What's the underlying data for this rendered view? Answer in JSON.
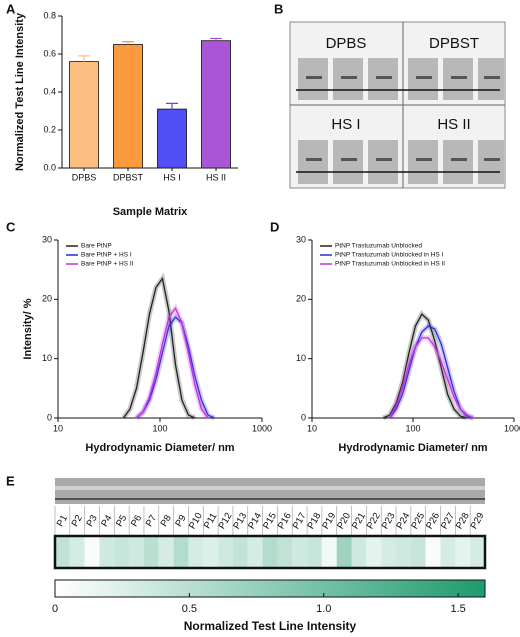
{
  "panels": [
    "A",
    "B",
    "C",
    "D",
    "E"
  ],
  "image_panel": {
    "labels": [
      "DPBS",
      "DPBST",
      "HS I",
      "HS II"
    ]
  },
  "chart_data": [
    {
      "type": "bar",
      "categories": [
        "DPBS",
        "DPBST",
        "HS I",
        "HS II"
      ],
      "values": [
        0.56,
        0.65,
        0.31,
        0.67
      ],
      "errors": [
        0.03,
        0.015,
        0.03,
        0.012
      ],
      "colors": [
        "#fdbf80",
        "#fb9a3c",
        "#5050f5",
        "#a855d6"
      ],
      "ylim": [
        0,
        0.8
      ],
      "yticks": [
        {
          "value": 0,
          "label": "0.0"
        },
        0.2,
        0.4,
        0.6,
        0.8
      ],
      "ylabel": "Normalized Test Line Intensity",
      "xlabel": "Sample Matrix"
    },
    {
      "type": "line",
      "xlog": true,
      "x": [
        43.8,
        50.7,
        58.8,
        68.1,
        78.8,
        91.3,
        105.7,
        122.4,
        141.8,
        164.2,
        190.1,
        220.2,
        255,
        295.3,
        342
      ],
      "series": [
        {
          "name": "Bare PtNP",
          "color": "#222222",
          "values": [
            0,
            1.5,
            5,
            11,
            17.5,
            22,
            23.5,
            18,
            9,
            3,
            0.5,
            0,
            null,
            null,
            null
          ]
        },
        {
          "name": "Bare PtNP + HS I",
          "color": "#2a2ae0",
          "values": [
            null,
            null,
            0,
            1,
            3,
            6.5,
            11,
            15.5,
            17,
            16,
            12,
            7,
            3,
            0.5,
            0
          ]
        },
        {
          "name": "Bare PtNP + HS II",
          "color": "#c030e0",
          "values": [
            null,
            null,
            0,
            1,
            3.5,
            7.5,
            12.5,
            17,
            18.5,
            16,
            11,
            5.5,
            1.5,
            0,
            null
          ]
        }
      ],
      "xlim": [
        10,
        1000
      ],
      "xticks": [
        10,
        100,
        1000
      ],
      "ylim": [
        0,
        30
      ],
      "yticks": [
        0,
        10,
        20,
        30
      ],
      "ylabel": "Intensity/ %",
      "xlabel": "Hydrodynamic Diameter/ nm",
      "legend": "upper left"
    },
    {
      "type": "line",
      "xlog": true,
      "x": [
        50.7,
        58.8,
        68.1,
        78.8,
        91.3,
        105.7,
        122.4,
        141.8,
        164.2,
        190.1,
        220.2,
        255,
        295.3,
        342,
        396
      ],
      "series": [
        {
          "name": "PtNP Trastuzumab Unblocked",
          "color": "#222222",
          "values": [
            0,
            0.5,
            2.5,
            6,
            11,
            15.5,
            17.5,
            16.5,
            13,
            8.5,
            4,
            1.5,
            0.3,
            0,
            null
          ]
        },
        {
          "name": "PtNP Trastuzumab Unblocked in HS I",
          "color": "#2a2ae0",
          "values": [
            null,
            0,
            1.5,
            4,
            8,
            12,
            14.5,
            15.5,
            15,
            12.5,
            8.5,
            4.5,
            1.5,
            0.3,
            0
          ]
        },
        {
          "name": "PtNP Trastuzumab Unblocked in HS II",
          "color": "#c030e0",
          "values": [
            null,
            0,
            2,
            5,
            9,
            12,
            13.5,
            13.5,
            12,
            9.5,
            6.5,
            3.5,
            1.5,
            0.5,
            0
          ]
        }
      ],
      "xlim": [
        10,
        1000
      ],
      "xticks": [
        10,
        100,
        1000
      ],
      "ylim": [
        0,
        30
      ],
      "yticks": [
        0,
        10,
        20,
        30
      ],
      "xlabel": "Hydrodynamic Diameter/ nm",
      "legend": "upper left"
    },
    {
      "type": "heatmap",
      "categories": [
        "P1",
        "P2",
        "P3",
        "P4",
        "P5",
        "P6",
        "P7",
        "P8",
        "P9",
        "P10",
        "P11",
        "P12",
        "P13",
        "P14",
        "P15",
        "P16",
        "P17",
        "P18",
        "P19",
        "P20",
        "P21",
        "P22",
        "P23",
        "P24",
        "P25",
        "P26",
        "P27",
        "P28",
        "P29"
      ],
      "values": [
        0.45,
        0.3,
        0.05,
        0.35,
        0.4,
        0.35,
        0.5,
        0.3,
        0.55,
        0.3,
        0.25,
        0.35,
        0.45,
        0.3,
        0.55,
        0.45,
        0.35,
        0.4,
        0.1,
        0.7,
        0.35,
        0.2,
        0.3,
        0.35,
        0.4,
        0.05,
        0.3,
        0.2,
        0.3
      ],
      "clim": [
        0,
        1.6
      ],
      "cticks": [
        0,
        0.5,
        {
          "value": 1,
          "label": "1.0"
        },
        1.5
      ],
      "colors": [
        "#ffffff",
        "#1e9b6d"
      ],
      "clabel": "Normalized Test Line Intensity"
    }
  ]
}
